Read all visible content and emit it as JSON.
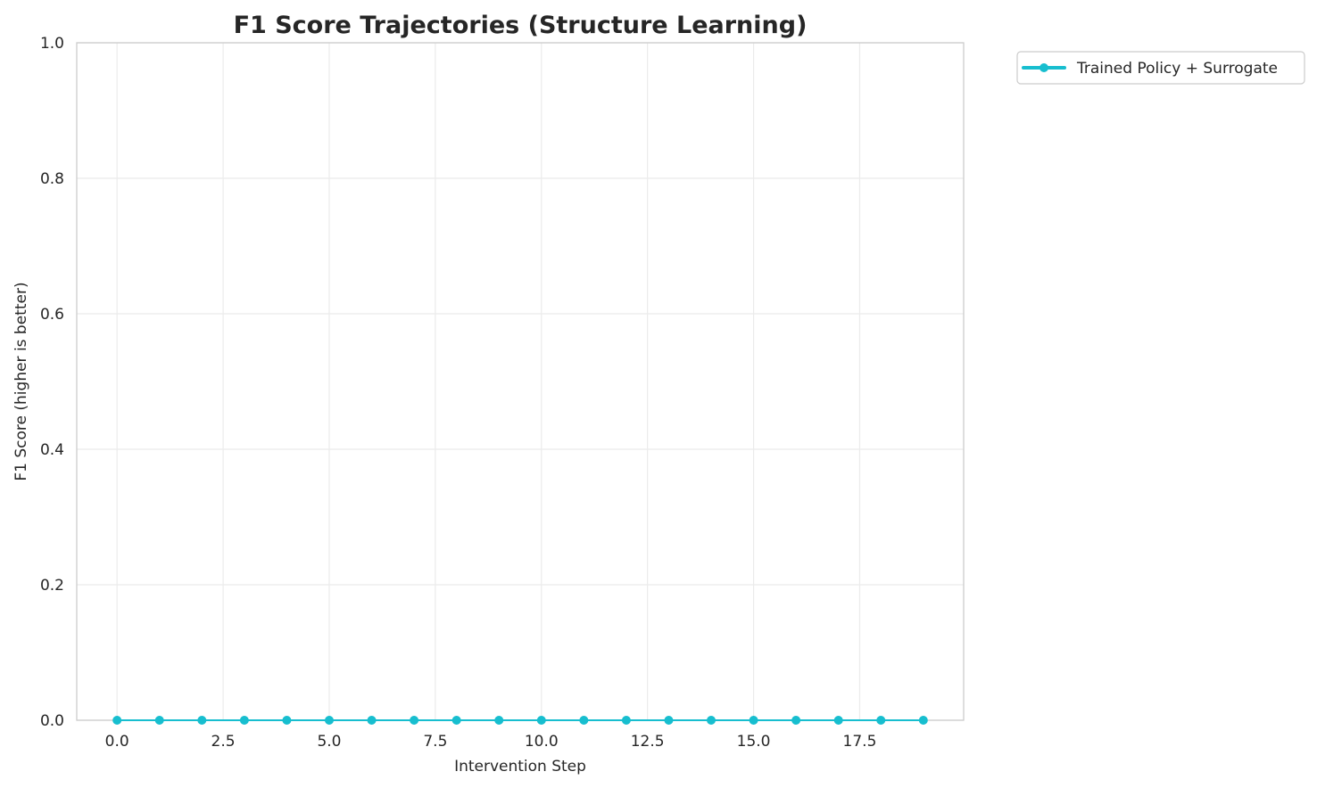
{
  "chart_data": {
    "type": "line",
    "title": "F1 Score Trajectories (Structure Learning)",
    "xlabel": "Intervention Step",
    "ylabel": "F1 Score (higher is better)",
    "xlim": [
      -0.95,
      19.95
    ],
    "ylim": [
      0,
      1
    ],
    "x_ticks": [
      0,
      2.5,
      5,
      7.5,
      10,
      12.5,
      15,
      17.5
    ],
    "x_tick_labels": [
      "0.0",
      "2.5",
      "5.0",
      "7.5",
      "10.0",
      "12.5",
      "15.0",
      "17.5"
    ],
    "y_ticks": [
      0,
      0.2,
      0.4,
      0.6,
      0.8,
      1.0
    ],
    "y_tick_labels": [
      "0.0",
      "0.2",
      "0.4",
      "0.6",
      "0.8",
      "1.0"
    ],
    "grid": true,
    "legend_position": "outside-top-right",
    "series": [
      {
        "name": "Trained Policy + Surrogate",
        "color": "#17becf",
        "marker": "circle",
        "x": [
          0,
          1,
          2,
          3,
          4,
          5,
          6,
          7,
          8,
          9,
          10,
          11,
          12,
          13,
          14,
          15,
          16,
          17,
          18,
          19
        ],
        "y": [
          0,
          0,
          0,
          0,
          0,
          0,
          0,
          0,
          0,
          0,
          0,
          0,
          0,
          0,
          0,
          0,
          0,
          0,
          0,
          0
        ]
      }
    ]
  }
}
